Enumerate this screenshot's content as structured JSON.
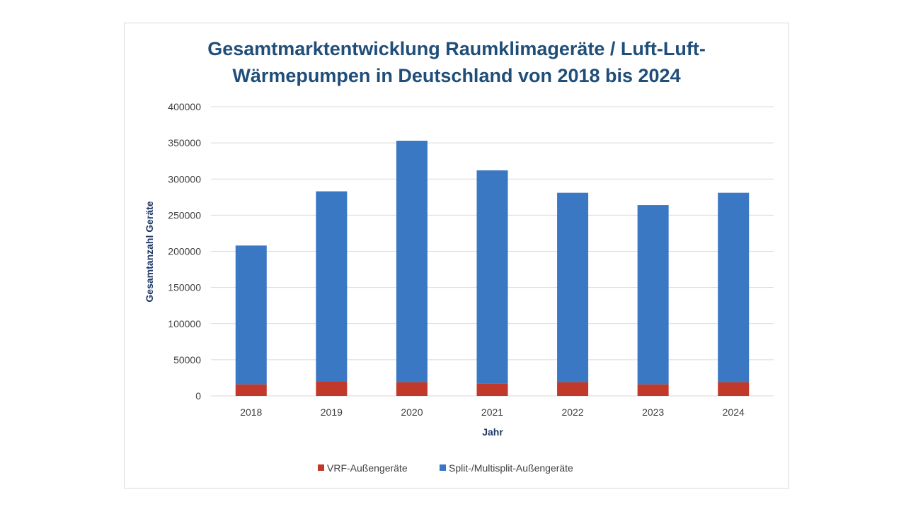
{
  "chart_data": {
    "type": "bar",
    "stacked": true,
    "title": "Gesamtmarktentwicklung Raumklimageräte / Luft-Luft-Wärmepumpen in Deutschland von 2018 bis 2024",
    "title_lines": [
      "Gesamtmarktentwicklung Raumklimageräte / Luft-Luft-",
      "Wärmepumpen in Deutschland von 2018 bis 2024"
    ],
    "xlabel": "Jahr",
    "ylabel": "Gesamtanzahl Geräte",
    "categories": [
      "2018",
      "2019",
      "2020",
      "2021",
      "2022",
      "2023",
      "2024"
    ],
    "series": [
      {
        "name": "VRF-Außengeräte",
        "color": "#c0392b",
        "values": [
          16000,
          20000,
          19000,
          17000,
          19000,
          16000,
          19000
        ]
      },
      {
        "name": "Split-/Multisplit-Außengeräte",
        "color": "#3a78c3",
        "values": [
          192000,
          263000,
          334000,
          295000,
          262000,
          248000,
          262000
        ]
      }
    ],
    "ylim": [
      0,
      400000
    ],
    "yticks": [
      0,
      50000,
      100000,
      150000,
      200000,
      250000,
      300000,
      350000,
      400000
    ],
    "grid": true,
    "legend": "bottom"
  }
}
